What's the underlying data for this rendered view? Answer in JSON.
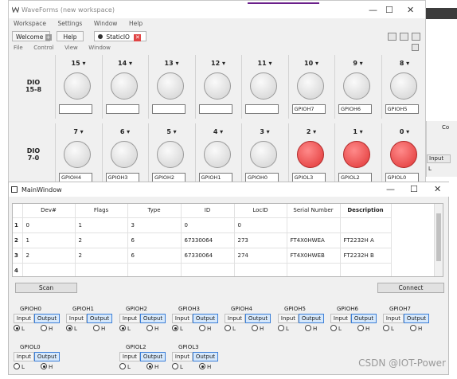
{
  "wf": {
    "title": "WaveForms (new workspace)",
    "menu": [
      "Workspace",
      "Settings",
      "Window",
      "Help"
    ],
    "tabs": {
      "welcome": "Welcome",
      "help": "Help",
      "static": "StaticIO"
    },
    "submenu": [
      "File",
      "Control",
      "View",
      "Window"
    ],
    "row1": {
      "label1": "DIO",
      "label2": "15-8"
    },
    "row2": {
      "label1": "DIO",
      "label2": "7-0"
    },
    "pins_top": [
      {
        "num": "15",
        "label": "",
        "on": false
      },
      {
        "num": "14",
        "label": "",
        "on": false
      },
      {
        "num": "13",
        "label": "",
        "on": false
      },
      {
        "num": "12",
        "label": "",
        "on": false
      },
      {
        "num": "11",
        "label": "",
        "on": false
      },
      {
        "num": "10",
        "label": "GPIOH7",
        "on": false
      },
      {
        "num": "9",
        "label": "GPIOH6",
        "on": false
      },
      {
        "num": "8",
        "label": "GPIOH5",
        "on": false
      }
    ],
    "pins_bottom": [
      {
        "num": "7",
        "label": "GPIOH4",
        "on": false
      },
      {
        "num": "6",
        "label": "GPIOH3",
        "on": false
      },
      {
        "num": "5",
        "label": "GPIOH2",
        "on": false
      },
      {
        "num": "4",
        "label": "GPIOH1",
        "on": false
      },
      {
        "num": "3",
        "label": "GPIOH0",
        "on": false
      },
      {
        "num": "2",
        "label": "GPIOL3",
        "on": true
      },
      {
        "num": "1",
        "label": "GPIOL2",
        "on": true
      },
      {
        "num": "0",
        "label": "GPIOL0",
        "on": true
      }
    ]
  },
  "rside": {
    "c": "Co",
    "input": "Input",
    "l": "L"
  },
  "mw": {
    "title": "MainWindow",
    "headers": [
      "Dev#",
      "Flags",
      "Type",
      "ID",
      "LocID",
      "Serial Number",
      "Description"
    ],
    "rows": [
      {
        "n": "1",
        "cells": [
          "0",
          "1",
          "3",
          "0",
          "0",
          "",
          ""
        ]
      },
      {
        "n": "2",
        "cells": [
          "1",
          "2",
          "6",
          "67330064",
          "273",
          "FT4X0HWEA",
          "FT2232H  A"
        ]
      },
      {
        "n": "3",
        "cells": [
          "2",
          "2",
          "6",
          "67330064",
          "274",
          "FT4X0HWEB",
          "FT2232H  B"
        ]
      },
      {
        "n": "4",
        "cells": [
          "",
          "",
          "",
          "",
          "",
          "",
          ""
        ]
      }
    ],
    "scan": "Scan",
    "connect": "Connect",
    "input_label": "Input",
    "output_label": "Output",
    "low": "L",
    "high": "H",
    "gpio_top": [
      {
        "name": "GPIOH0",
        "sel": "L"
      },
      {
        "name": "GPIOH1",
        "sel": "L"
      },
      {
        "name": "GPIOH2",
        "sel": "L"
      },
      {
        "name": "GPIOH3",
        "sel": "L"
      },
      {
        "name": "GPIOH4",
        "sel": "none"
      },
      {
        "name": "GPIOH5",
        "sel": "none"
      },
      {
        "name": "GPIOH6",
        "sel": "none"
      },
      {
        "name": "GPIOH7",
        "sel": "none"
      }
    ],
    "gpio_bottom": [
      {
        "name": "GPIOL0",
        "sel": "H"
      },
      {
        "name": "GPIOL2",
        "sel": "H"
      },
      {
        "name": "GPIOL3",
        "sel": "H"
      }
    ]
  },
  "watermark": "CSDN @IOT-Power"
}
